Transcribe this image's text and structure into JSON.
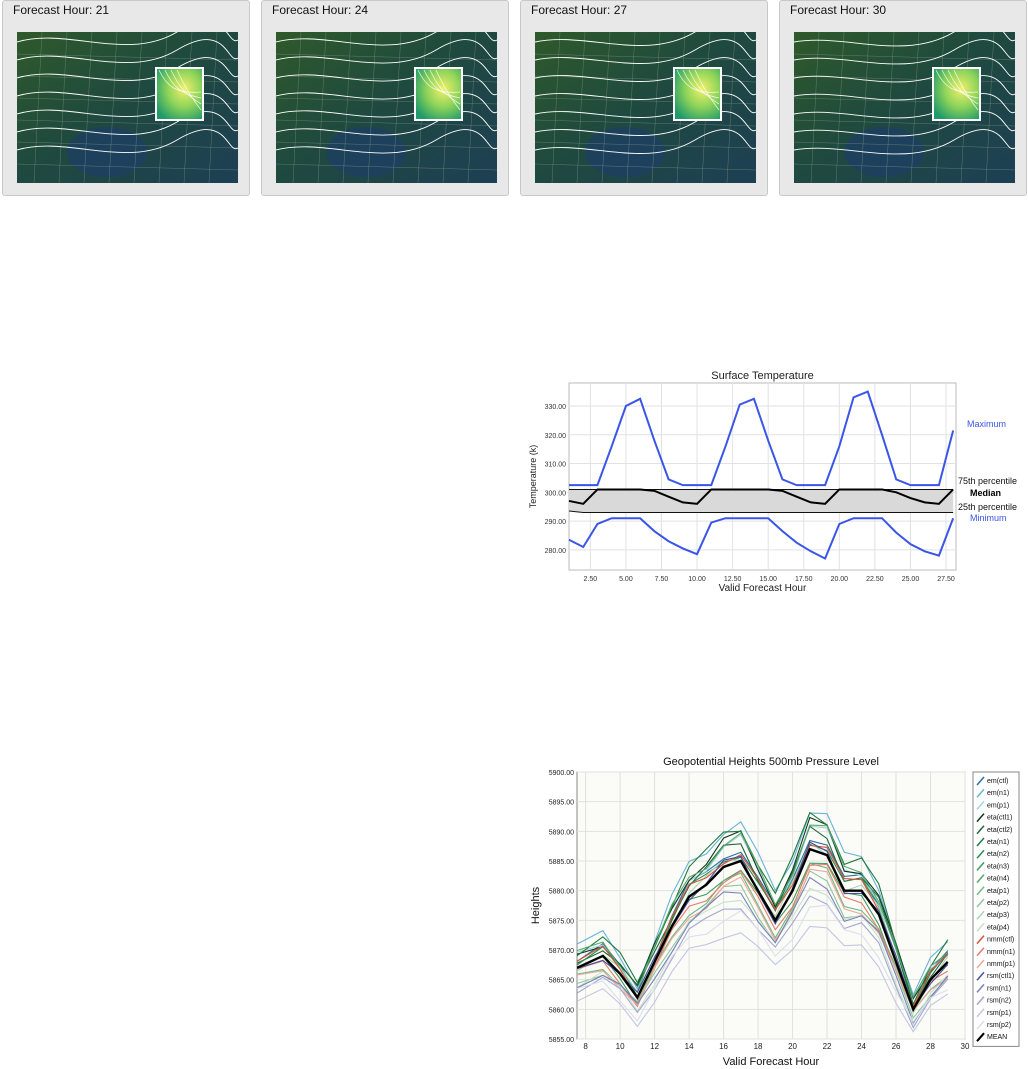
{
  "panels": [
    {
      "label": "Forecast Hour: 21"
    },
    {
      "label": "Forecast Hour: 24"
    },
    {
      "label": "Forecast Hour: 27"
    },
    {
      "label": "Forecast Hour: 30"
    }
  ],
  "chart_data": [
    {
      "type": "line",
      "title": "Surface Temperature",
      "xlabel": "Valid Forecast Hour",
      "ylabel": "Temperature (k)",
      "xlim": [
        1,
        28.2
      ],
      "ylim": [
        273,
        338
      ],
      "x_ticks": [
        "2.50",
        "5.00",
        "7.50",
        "10.00",
        "12.50",
        "15.00",
        "17.50",
        "20.00",
        "22.50",
        "25.00",
        "27.50"
      ],
      "y_ticks": [
        "280.00",
        "290.00",
        "300.00",
        "310.00",
        "320.00",
        "330.00"
      ],
      "x": [
        1,
        2,
        3,
        4,
        5,
        6,
        7,
        8,
        9,
        10,
        11,
        12,
        13,
        14,
        15,
        16,
        17,
        18,
        19,
        20,
        21,
        22,
        23,
        24,
        25,
        26,
        27,
        28
      ],
      "series": [
        {
          "name": "Maximum",
          "color": "#3a55e8",
          "values": [
            302.5,
            302.5,
            302.5,
            316,
            330,
            332.5,
            318,
            304.5,
            302.5,
            302.5,
            302.5,
            316,
            330.5,
            332.5,
            318,
            304.5,
            302.5,
            302.5,
            302.5,
            316,
            333,
            335,
            320,
            304.5,
            302.5,
            302.5,
            302.5,
            321.5
          ]
        },
        {
          "name": "75th percentile",
          "color": "#111111",
          "values": [
            301,
            301,
            301,
            301,
            301,
            301,
            301,
            301,
            301,
            301,
            301,
            301,
            301,
            301,
            301,
            301,
            301,
            301,
            301,
            301,
            301,
            301,
            301,
            301,
            301,
            301,
            301,
            301
          ]
        },
        {
          "name": "Median",
          "color": "#000000",
          "values": [
            297,
            296,
            301,
            301,
            301,
            301,
            300.5,
            298.5,
            296.5,
            296,
            301,
            301,
            301,
            301,
            301,
            300.5,
            298.5,
            296.5,
            296,
            301,
            301,
            301,
            301,
            300,
            298,
            296.5,
            296,
            301
          ]
        },
        {
          "name": "25th percentile",
          "color": "#111111",
          "values": [
            293.5,
            293,
            293,
            293,
            293,
            293,
            293,
            293,
            293,
            293,
            293,
            293,
            293,
            293,
            293,
            293,
            293,
            293,
            293,
            293,
            293,
            293,
            293,
            293,
            293,
            293,
            293,
            293
          ]
        },
        {
          "name": "Minimum",
          "color": "#3a55e8",
          "values": [
            283.5,
            281,
            289,
            291,
            291,
            291,
            286.5,
            283,
            280.5,
            278.5,
            289.5,
            291,
            291,
            291,
            291,
            286.5,
            282.5,
            279.5,
            277,
            289,
            291,
            291,
            291,
            286,
            282,
            279.5,
            278,
            291
          ]
        }
      ]
    },
    {
      "type": "line",
      "title": "Geopotential Heights 500mb Pressure Level",
      "xlabel": "Valid Forecast Hour",
      "ylabel": "Heights",
      "xlim": [
        7.5,
        30
      ],
      "ylim": [
        5855,
        5900
      ],
      "x_ticks": [
        "8",
        "10",
        "12",
        "14",
        "16",
        "18",
        "20",
        "22",
        "24",
        "26",
        "28",
        "30"
      ],
      "y_ticks": [
        "5855.00",
        "5860.00",
        "5865.00",
        "5870.00",
        "5875.00",
        "5880.00",
        "5885.00",
        "5890.00",
        "5895.00",
        "5900.00"
      ],
      "x": [
        7.5,
        9,
        10,
        11,
        12,
        13,
        14,
        15,
        16,
        17,
        18,
        19,
        20,
        21,
        22,
        23,
        24,
        25,
        26,
        27,
        28,
        29
      ],
      "mean": [
        5867,
        5869,
        5866,
        5862,
        5868,
        5874,
        5879,
        5881,
        5884,
        5885,
        5880,
        5875,
        5880,
        5887,
        5886,
        5880,
        5880,
        5876,
        5868,
        5860,
        5865,
        5868
      ],
      "series": [
        {
          "name": "em(ctl)",
          "color": "#2d6ea3",
          "offset": 1.5
        },
        {
          "name": "em(n1)",
          "color": "#6cb3d9",
          "offset": 4.5
        },
        {
          "name": "em(p1)",
          "color": "#a8d3e6",
          "offset": 2.5
        },
        {
          "name": "eta(ctl1)",
          "color": "#0d3b1e",
          "offset": 3
        },
        {
          "name": "eta(ctl2)",
          "color": "#1e6b38",
          "offset": 2
        },
        {
          "name": "eta(n1)",
          "color": "#237a3f",
          "offset": 4
        },
        {
          "name": "eta(n2)",
          "color": "#2e8b4f",
          "offset": 1
        },
        {
          "name": "eta(n3)",
          "color": "#3f9b5f",
          "offset": -1
        },
        {
          "name": "eta(n4)",
          "color": "#56a970",
          "offset": 2.8
        },
        {
          "name": "eta(p1)",
          "color": "#6fb883",
          "offset": -2
        },
        {
          "name": "eta(p2)",
          "color": "#8cc79b",
          "offset": -3
        },
        {
          "name": "eta(p3)",
          "color": "#a8d6b3",
          "offset": 0.5
        },
        {
          "name": "eta(p4)",
          "color": "#c4e3cb",
          "offset": -4
        },
        {
          "name": "nmm(ctl)",
          "color": "#d9533d",
          "offset": 1
        },
        {
          "name": "nmm(n1)",
          "color": "#e57d68",
          "offset": -1.5
        },
        {
          "name": "nmm(p1)",
          "color": "#f0a898",
          "offset": -2.5
        },
        {
          "name": "rsm(ctl1)",
          "color": "#4a4f9c",
          "offset": 0.2
        },
        {
          "name": "rsm(n1)",
          "color": "#7b80bb",
          "offset": -3.5
        },
        {
          "name": "rsm(n2)",
          "color": "#a2a6d0",
          "offset": -5
        },
        {
          "name": "rsm(p1)",
          "color": "#c3c6e2",
          "offset": -8
        },
        {
          "name": "rsm(p2)",
          "color": "#dcdeee",
          "offset": -6
        },
        {
          "name": "MEAN",
          "color": "#000000",
          "offset": 0
        }
      ]
    }
  ]
}
